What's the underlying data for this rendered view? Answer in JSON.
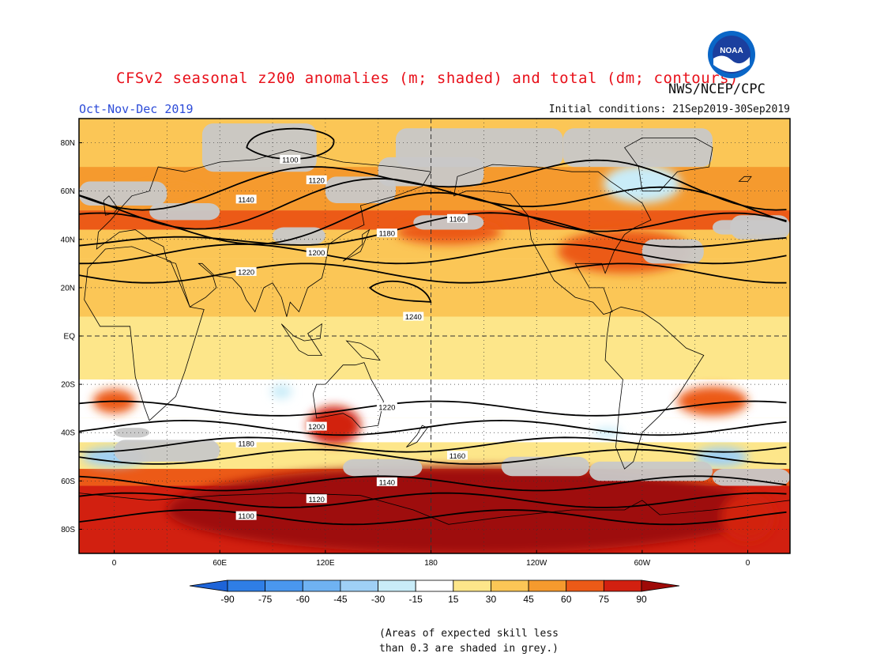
{
  "title": "CFSv2 seasonal z200 anomalies (m; shaded) and total (dm; contours)",
  "agency": "NWS/NCEP/CPC",
  "logo_text": "NOAA",
  "season": "Oct-Nov-Dec 2019",
  "initial_conditions": "Initial conditions: 21Sep2019-30Sep2019",
  "note_lines": [
    "(Areas of expected skill less",
    "than 0.3 are shaded in grey.)"
  ],
  "map": {
    "projection": "cylindrical-equidistant",
    "lon_range": [
      -20,
      384
    ],
    "lat_range": [
      -90,
      90
    ],
    "lat_labels": [
      {
        "lat": 80,
        "text": "80N"
      },
      {
        "lat": 60,
        "text": "60N"
      },
      {
        "lat": 40,
        "text": "40N"
      },
      {
        "lat": 20,
        "text": "20N"
      },
      {
        "lat": 0,
        "text": "EQ"
      },
      {
        "lat": -20,
        "text": "20S"
      },
      {
        "lat": -40,
        "text": "40S"
      },
      {
        "lat": -60,
        "text": "60S"
      },
      {
        "lat": -80,
        "text": "80S"
      }
    ],
    "lon_labels": [
      {
        "lon": 0,
        "text": "0"
      },
      {
        "lon": 60,
        "text": "60E"
      },
      {
        "lon": 120,
        "text": "120E"
      },
      {
        "lon": 180,
        "text": "180"
      },
      {
        "lon": 240,
        "text": "120W"
      },
      {
        "lon": 300,
        "text": "60W"
      },
      {
        "lon": 360,
        "text": "0"
      }
    ],
    "gridlines": "dotted",
    "dashed_lines": [
      "equator",
      "dateline"
    ]
  },
  "colorbar": {
    "labels": [
      "-90",
      "-75",
      "-60",
      "-45",
      "-30",
      "-15",
      "15",
      "30",
      "45",
      "60",
      "75",
      "90"
    ],
    "colors": [
      "#1e64d8",
      "#2f7ee6",
      "#4a97ee",
      "#6fb2f2",
      "#9fd0f6",
      "#c9ecf8",
      "#ffffff",
      "#fde68a",
      "#fbc656",
      "#f59a2e",
      "#ec5a17",
      "#d22010",
      "#9e0a08"
    ]
  },
  "skill_mask_color": "#c8c8c8",
  "anomaly_regions": [
    {
      "lon": 200,
      "lat": -72,
      "rx": 170,
      "ry": 18,
      "value": 90
    },
    {
      "lon": 160,
      "lat": -68,
      "rx": 110,
      "ry": 13,
      "value": 90
    },
    {
      "lon": 240,
      "lat": -75,
      "rx": 70,
      "ry": 10,
      "value": 90
    },
    {
      "lon": 125,
      "lat": -37,
      "rx": 15,
      "ry": 8,
      "value": 75
    },
    {
      "lon": 190,
      "lat": 43,
      "rx": 30,
      "ry": 5,
      "value": 60
    },
    {
      "lon": 290,
      "lat": 35,
      "rx": 38,
      "ry": 9,
      "value": 60
    },
    {
      "lon": 340,
      "lat": -27,
      "rx": 20,
      "ry": 6,
      "value": 60
    },
    {
      "lon": 0,
      "lat": -27,
      "rx": 12,
      "ry": 5,
      "value": 60
    },
    {
      "lon": 30,
      "lat": 58,
      "rx": 20,
      "ry": 4,
      "value": 45
    },
    {
      "lon": 360,
      "lat": -75,
      "rx": 15,
      "ry": 10,
      "value": 75
    },
    {
      "lon": 0,
      "lat": -50,
      "rx": 18,
      "ry": 4,
      "value": -45
    },
    {
      "lon": 345,
      "lat": -50,
      "rx": 15,
      "ry": 4,
      "value": -45
    },
    {
      "lon": 300,
      "lat": 63,
      "rx": 22,
      "ry": 8,
      "value": -30
    },
    {
      "lon": 95,
      "lat": -23,
      "rx": 6,
      "ry": 3,
      "value": -30
    },
    {
      "lon": 280,
      "lat": -40,
      "rx": 8,
      "ry": 2,
      "value": -30
    }
  ],
  "contours": [
    {
      "label": "1100",
      "lat": -75
    },
    {
      "label": "1120",
      "lat": -68
    },
    {
      "label": "1140",
      "lat": -61
    },
    {
      "label": "1160",
      "lat": -50
    },
    {
      "label": "1180",
      "lat": -45
    },
    {
      "label": "1200",
      "lat": -38
    },
    {
      "label": "1220",
      "lat": -30
    },
    {
      "label": "1240",
      "lat": 18
    },
    {
      "label": "1220",
      "lat": 26
    },
    {
      "label": "1200",
      "lat": 34
    },
    {
      "label": "1180",
      "lat": 42
    },
    {
      "label": "1160",
      "lat": 48
    },
    {
      "label": "1140",
      "lat": 56
    },
    {
      "label": "1120",
      "lat": 64
    },
    {
      "label": "1100",
      "lat": 78
    }
  ]
}
